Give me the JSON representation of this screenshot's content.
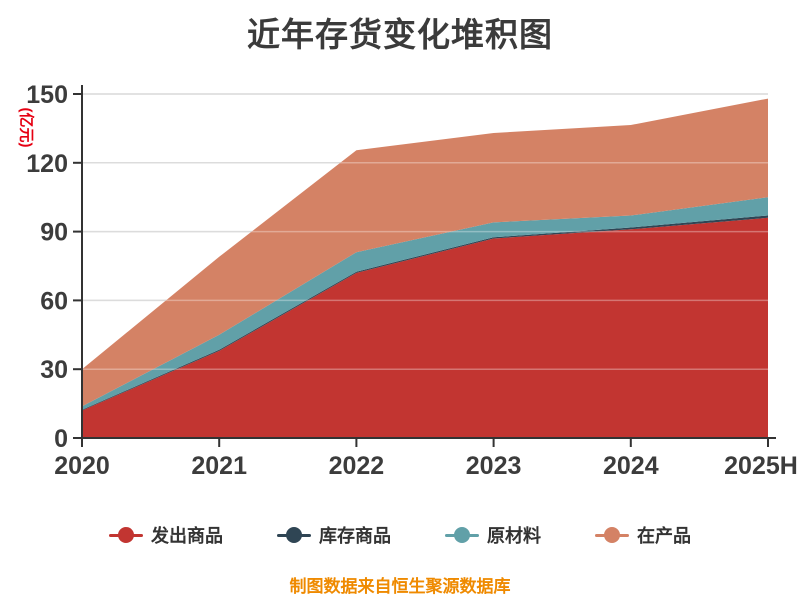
{
  "title": "近年存货变化堆积图",
  "yAxis": {
    "name": "(亿元)",
    "ticks": [
      0,
      30,
      60,
      90,
      120,
      150
    ]
  },
  "footer": {
    "text": "制图数据来自恒生聚源数据库"
  },
  "colors": {
    "title": "#3b3b3b",
    "axis_line": "#333333",
    "axis_text": "#3c3c3c",
    "grid_line": "#cccccc",
    "y_axis_name": "#e60012",
    "footer_text": "#ef8a00",
    "background": "#ffffff"
  },
  "chart_data": {
    "type": "area",
    "stacked": true,
    "title": "近年存货变化堆积图",
    "ylabel": "(亿元)",
    "ylim": [
      0,
      150
    ],
    "grid": true,
    "legend_position": "bottom",
    "categories": [
      "2020",
      "2021",
      "2022",
      "2023",
      "2024",
      "2025H"
    ],
    "series": [
      {
        "name": "发出商品",
        "color": "#c23531",
        "values": [
          12,
          38,
          72,
          87,
          91,
          96
        ]
      },
      {
        "name": "库存商品",
        "color": "#2f4554",
        "values": [
          0.3,
          0.5,
          0.5,
          0.5,
          0.8,
          1
        ]
      },
      {
        "name": "原材料",
        "color": "#61a0a8",
        "values": [
          1.5,
          6.5,
          8.5,
          6.5,
          5.2,
          8
        ]
      },
      {
        "name": "在产品",
        "color": "#d48265",
        "values": [
          16.2,
          34,
          44.5,
          39,
          39.5,
          43
        ]
      }
    ],
    "stack_totals": [
      30,
      79,
      125.5,
      133,
      136.5,
      148
    ]
  }
}
